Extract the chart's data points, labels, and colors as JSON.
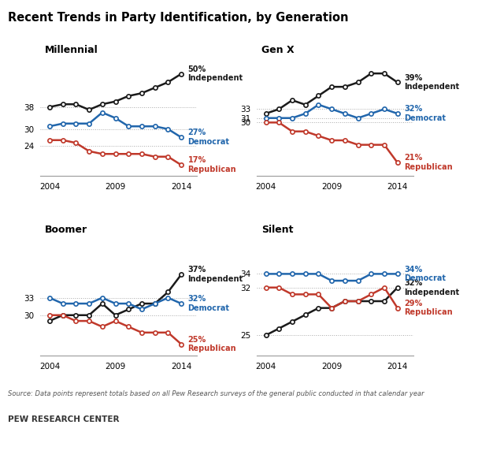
{
  "title": "Recent Trends in Party Identification, by Generation",
  "source": "Source: Data points represent totals based on all Pew Research surveys of the general public conducted in that calendar year",
  "source2": "PEW RESEARCH CENTER",
  "years": [
    2004,
    2005,
    2006,
    2007,
    2008,
    2009,
    2010,
    2011,
    2012,
    2013,
    2014
  ],
  "panels": [
    {
      "label": "Millennial",
      "independent": [
        38,
        39,
        39,
        37,
        39,
        40,
        42,
        43,
        45,
        47,
        50
      ],
      "democrat": [
        31,
        32,
        32,
        32,
        36,
        34,
        31,
        31,
        31,
        30,
        27
      ],
      "republican": [
        26,
        26,
        25,
        22,
        21,
        21,
        21,
        21,
        20,
        20,
        17
      ],
      "yticks": [
        24,
        30,
        38
      ],
      "ylim": [
        13,
        55
      ],
      "end_labels": {
        "independent": "50%\nIndependent",
        "democrat": "27%\nDemocrat",
        "republican": "17%\nRepublican"
      },
      "label_colors": {
        "independent": "#1a1a1a",
        "democrat": "#2166ac",
        "republican": "#c0392b"
      }
    },
    {
      "label": "Gen X",
      "independent": [
        32,
        33,
        35,
        34,
        36,
        38,
        38,
        39,
        41,
        41,
        39
      ],
      "democrat": [
        31,
        31,
        31,
        32,
        34,
        33,
        32,
        31,
        32,
        33,
        32
      ],
      "republican": [
        30,
        30,
        28,
        28,
        27,
        26,
        26,
        25,
        25,
        25,
        21
      ],
      "yticks": [
        30,
        31,
        33
      ],
      "ylim": [
        18,
        44
      ],
      "end_labels": {
        "independent": "39%\nIndependent",
        "democrat": "32%\nDemocrat",
        "republican": "21%\nRepublican"
      },
      "label_colors": {
        "independent": "#1a1a1a",
        "democrat": "#2166ac",
        "republican": "#c0392b"
      }
    },
    {
      "label": "Boomer",
      "independent": [
        29,
        30,
        30,
        30,
        32,
        30,
        31,
        32,
        32,
        34,
        37
      ],
      "democrat": [
        33,
        32,
        32,
        32,
        33,
        32,
        32,
        31,
        32,
        33,
        32
      ],
      "republican": [
        30,
        30,
        29,
        29,
        28,
        29,
        28,
        27,
        27,
        27,
        25
      ],
      "yticks": [
        30,
        33
      ],
      "ylim": [
        23,
        43
      ],
      "end_labels": {
        "independent": "37%\nIndependent",
        "democrat": "32%\nDemocrat",
        "republican": "25%\nRepublican"
      },
      "label_colors": {
        "independent": "#1a1a1a",
        "democrat": "#2166ac",
        "republican": "#c0392b"
      }
    },
    {
      "label": "Silent",
      "independent": [
        25,
        26,
        27,
        28,
        29,
        29,
        30,
        30,
        30,
        30,
        32
      ],
      "democrat": [
        34,
        34,
        34,
        34,
        34,
        33,
        33,
        33,
        34,
        34,
        34
      ],
      "republican": [
        32,
        32,
        31,
        31,
        31,
        29,
        30,
        30,
        31,
        32,
        29
      ],
      "yticks": [
        25,
        32,
        34
      ],
      "ylim": [
        22,
        39
      ],
      "end_labels": {
        "independent": "32%\nIndependent",
        "democrat": "34%\nDemocrat",
        "republican": "29%\nRepublican"
      },
      "label_colors": {
        "independent": "#1a1a1a",
        "democrat": "#2166ac",
        "republican": "#c0392b"
      }
    }
  ],
  "colors": {
    "independent": "#1a1a1a",
    "democrat": "#2166ac",
    "republican": "#c0392b"
  },
  "xticks": [
    2004,
    2009,
    2014
  ]
}
